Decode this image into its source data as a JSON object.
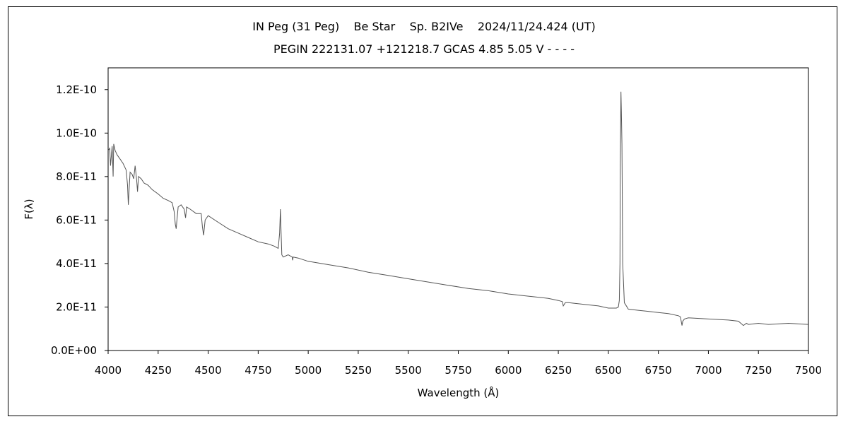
{
  "chart_data": {
    "type": "line",
    "title": "IN Peg (31 Peg)    Be Star    Sp. B2IVe    2024/11/24.424 (UT)",
    "subtitle": "PEGIN 222131.07 +121218.7 GCAS 4.85 5.05 V - - - -",
    "xlabel": "Wavelength (Å)",
    "ylabel": "F(λ)",
    "xlim": [
      4000,
      7500
    ],
    "ylim": [
      0,
      1.3e-10
    ],
    "x_ticks": [
      4000,
      4250,
      4500,
      4750,
      5000,
      5250,
      5500,
      5750,
      6000,
      6250,
      6500,
      6750,
      7000,
      7250,
      7500
    ],
    "x_tick_labels": [
      "4000",
      "4250",
      "4500",
      "4750",
      "5000",
      "5250",
      "5500",
      "5750",
      "6000",
      "6250",
      "6500",
      "6750",
      "7000",
      "7250",
      "7500"
    ],
    "y_ticks": [
      0,
      2e-11,
      4e-11,
      6e-11,
      8e-11,
      1e-10,
      1.2e-10
    ],
    "y_tick_labels": [
      "0.0E+00",
      "2.0E-11",
      "4.0E-11",
      "6.0E-11",
      "8.0E-11",
      "1.0E-10",
      "1.2E-10"
    ],
    "grid": false,
    "legend": "none",
    "line_color": "#555555",
    "series": [
      {
        "x": [
          4000,
          4008,
          4012,
          4020,
          4025,
          4028,
          4035,
          4045,
          4060,
          4075,
          4090,
          4097,
          4101,
          4105,
          4110,
          4120,
          4128,
          4135,
          4143,
          4147,
          4152,
          4165,
          4180,
          4200,
          4220,
          4250,
          4275,
          4300,
          4320,
          4330,
          4336,
          4340,
          4344,
          4350,
          4365,
          4380,
          4387,
          4392,
          4410,
          4440,
          4465,
          4471,
          4477,
          4485,
          4500,
          4550,
          4600,
          4650,
          4700,
          4750,
          4800,
          4830,
          4850,
          4857,
          4861,
          4865,
          4868,
          4875,
          4900,
          4920,
          4922,
          4925,
          4950,
          5000,
          5100,
          5200,
          5300,
          5400,
          5500,
          5600,
          5700,
          5800,
          5900,
          6000,
          6100,
          6200,
          6250,
          6270,
          6275,
          6285,
          6300,
          6400,
          6450,
          6500,
          6540,
          6550,
          6555,
          6558,
          6560,
          6563,
          6565,
          6568,
          6572,
          6580,
          6600,
          6650,
          6700,
          6750,
          6800,
          6850,
          6860,
          6868,
          6872,
          6880,
          6900,
          7000,
          7100,
          7150,
          7175,
          7190,
          7200,
          7250,
          7300,
          7400,
          7500
        ],
        "y": [
          9.2e-11,
          9.3e-11,
          8.5e-11,
          9.4e-11,
          8e-11,
          9.5e-11,
          9.2e-11,
          9e-11,
          8.8e-11,
          8.6e-11,
          8.3e-11,
          7.6e-11,
          6.7e-11,
          7.4e-11,
          8.2e-11,
          8.1e-11,
          7.9e-11,
          8.5e-11,
          7.8e-11,
          7.3e-11,
          8e-11,
          7.9e-11,
          7.7e-11,
          7.6e-11,
          7.4e-11,
          7.2e-11,
          7e-11,
          6.9e-11,
          6.8e-11,
          6.4e-11,
          5.8e-11,
          5.6e-11,
          6e-11,
          6.6e-11,
          6.7e-11,
          6.5e-11,
          6.1e-11,
          6.6e-11,
          6.5e-11,
          6.3e-11,
          6.3e-11,
          5.7e-11,
          5.3e-11,
          6e-11,
          6.2e-11,
          5.9e-11,
          5.6e-11,
          5.4e-11,
          5.2e-11,
          5e-11,
          4.9e-11,
          4.8e-11,
          4.7e-11,
          5.4e-11,
          6.5e-11,
          5.3e-11,
          4.4e-11,
          4.3e-11,
          4.4e-11,
          4.3e-11,
          4.15e-11,
          4.3e-11,
          4.25e-11,
          4.1e-11,
          3.95e-11,
          3.8e-11,
          3.6e-11,
          3.45e-11,
          3.3e-11,
          3.15e-11,
          3e-11,
          2.85e-11,
          2.75e-11,
          2.6e-11,
          2.5e-11,
          2.4e-11,
          2.3e-11,
          2.25e-11,
          2.05e-11,
          2.2e-11,
          2.2e-11,
          2.1e-11,
          2.05e-11,
          1.95e-11,
          1.95e-11,
          2e-11,
          2.3e-11,
          4e-11,
          8.5e-11,
          1.19e-10,
          1.1e-10,
          9.5e-11,
          4e-11,
          2.2e-11,
          1.9e-11,
          1.85e-11,
          1.8e-11,
          1.75e-11,
          1.7e-11,
          1.6e-11,
          1.55e-11,
          1.15e-11,
          1.35e-11,
          1.45e-11,
          1.5e-11,
          1.45e-11,
          1.4e-11,
          1.35e-11,
          1.15e-11,
          1.25e-11,
          1.2e-11,
          1.25e-11,
          1.2e-11,
          1.25e-11,
          1.2e-11
        ]
      }
    ]
  }
}
